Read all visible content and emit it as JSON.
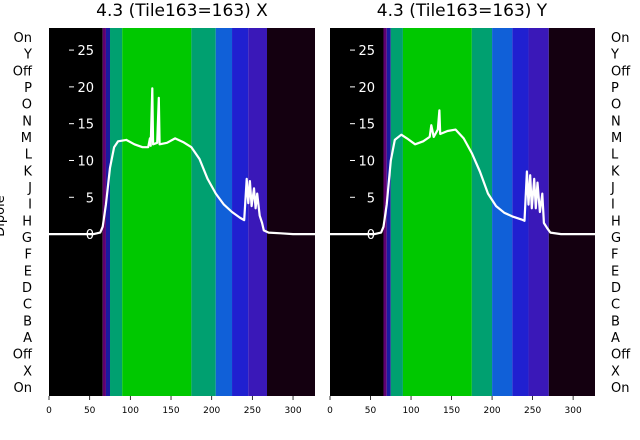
{
  "chart_data": [
    {
      "type": "heatmap",
      "title": "4.3 (Tile163=163) X",
      "ylabel": "Dipole",
      "y_tick_labels": [
        "On",
        "Y",
        "Off",
        "P",
        "O",
        "N",
        "M",
        "L",
        "K",
        "J",
        "I",
        "H",
        "G",
        "F",
        "E",
        "D",
        "C",
        "B",
        "A",
        "Off",
        "X",
        "On"
      ],
      "x_ticks": [
        0,
        50,
        100,
        150,
        200,
        250,
        300
      ],
      "x_range": [
        0,
        327
      ],
      "overlay_ticks": [
        0,
        5,
        10,
        15,
        20,
        25
      ],
      "overlay_range": [
        -22,
        28
      ],
      "color_bands": [
        {
          "from": 0,
          "to": 66,
          "color": "#000000"
        },
        {
          "from": 66,
          "to": 70,
          "color": "#600070"
        },
        {
          "from": 70,
          "to": 75,
          "color": "#1a1aa0"
        },
        {
          "from": 75,
          "to": 90,
          "color": "#00a070"
        },
        {
          "from": 90,
          "to": 175,
          "color": "#00c800"
        },
        {
          "from": 175,
          "to": 205,
          "color": "#00a070"
        },
        {
          "from": 205,
          "to": 225,
          "color": "#1060d8"
        },
        {
          "from": 225,
          "to": 245,
          "color": "#2020d0"
        },
        {
          "from": 245,
          "to": 268,
          "color": "#3a18b8"
        },
        {
          "from": 268,
          "to": 327,
          "color": "#140010"
        }
      ],
      "overlay_curve": [
        [
          0,
          0
        ],
        [
          55,
          0
        ],
        [
          63,
          0.2
        ],
        [
          66,
          1
        ],
        [
          70,
          4
        ],
        [
          75,
          9
        ],
        [
          80,
          11.8
        ],
        [
          85,
          12.6
        ],
        [
          95,
          12.8
        ],
        [
          105,
          12.2
        ],
        [
          115,
          11.8
        ],
        [
          122,
          11.8
        ],
        [
          124,
          13
        ],
        [
          125,
          12
        ],
        [
          127,
          19.8
        ],
        [
          128,
          12.2
        ],
        [
          133,
          12.4
        ],
        [
          135,
          18.5
        ],
        [
          136,
          12.2
        ],
        [
          145,
          12.4
        ],
        [
          155,
          13
        ],
        [
          165,
          12.5
        ],
        [
          175,
          11.8
        ],
        [
          185,
          10.2
        ],
        [
          195,
          7.5
        ],
        [
          205,
          5.5
        ],
        [
          215,
          4
        ],
        [
          225,
          3
        ],
        [
          235,
          2.2
        ],
        [
          240,
          1.9
        ],
        [
          243,
          7.5
        ],
        [
          245,
          4.2
        ],
        [
          247,
          7.2
        ],
        [
          249,
          3.8
        ],
        [
          252,
          6.2
        ],
        [
          254,
          3.5
        ],
        [
          256,
          5.5
        ],
        [
          259,
          2.5
        ],
        [
          262,
          1.5
        ],
        [
          264,
          0.5
        ],
        [
          270,
          0.2
        ],
        [
          285,
          0.1
        ],
        [
          300,
          0
        ],
        [
          327,
          0
        ]
      ]
    },
    {
      "type": "heatmap",
      "title": "4.3 (Tile163=163) Y",
      "ylabel": "",
      "y_tick_labels": [
        "On",
        "Y",
        "Off",
        "P",
        "O",
        "N",
        "M",
        "L",
        "K",
        "J",
        "I",
        "H",
        "G",
        "F",
        "E",
        "D",
        "C",
        "B",
        "A",
        "Off",
        "X",
        "On"
      ],
      "x_ticks": [
        0,
        50,
        100,
        150,
        200,
        250,
        300
      ],
      "x_range": [
        0,
        327
      ],
      "overlay_ticks": [
        0,
        5,
        10,
        15,
        20,
        25
      ],
      "overlay_range": [
        -22,
        28
      ],
      "color_bands": [
        {
          "from": 0,
          "to": 66,
          "color": "#000000"
        },
        {
          "from": 66,
          "to": 70,
          "color": "#600070"
        },
        {
          "from": 70,
          "to": 75,
          "color": "#1a1aa0"
        },
        {
          "from": 75,
          "to": 90,
          "color": "#00a070"
        },
        {
          "from": 90,
          "to": 175,
          "color": "#00c800"
        },
        {
          "from": 175,
          "to": 200,
          "color": "#00a070"
        },
        {
          "from": 200,
          "to": 225,
          "color": "#1060d8"
        },
        {
          "from": 225,
          "to": 245,
          "color": "#2020d0"
        },
        {
          "from": 245,
          "to": 270,
          "color": "#3a18b8"
        },
        {
          "from": 270,
          "to": 327,
          "color": "#140010"
        }
      ],
      "overlay_curve": [
        [
          0,
          0
        ],
        [
          55,
          0
        ],
        [
          63,
          0.2
        ],
        [
          66,
          1
        ],
        [
          70,
          4
        ],
        [
          75,
          10
        ],
        [
          80,
          12.8
        ],
        [
          88,
          13.5
        ],
        [
          95,
          13
        ],
        [
          105,
          12.2
        ],
        [
          115,
          12.6
        ],
        [
          123,
          13.2
        ],
        [
          125,
          14.8
        ],
        [
          128,
          13.2
        ],
        [
          133,
          14.2
        ],
        [
          135,
          16.8
        ],
        [
          136,
          13.6
        ],
        [
          145,
          14
        ],
        [
          155,
          14.2
        ],
        [
          165,
          13
        ],
        [
          175,
          11
        ],
        [
          185,
          8.5
        ],
        [
          195,
          5.5
        ],
        [
          205,
          3.8
        ],
        [
          215,
          2.9
        ],
        [
          225,
          2.4
        ],
        [
          236,
          2
        ],
        [
          240,
          1.8
        ],
        [
          243,
          8.5
        ],
        [
          245,
          4
        ],
        [
          247,
          8
        ],
        [
          249,
          3.5
        ],
        [
          252,
          7.5
        ],
        [
          254,
          3.5
        ],
        [
          256,
          7
        ],
        [
          259,
          3
        ],
        [
          262,
          5.5
        ],
        [
          264,
          1.5
        ],
        [
          268,
          0.8
        ],
        [
          272,
          0.2
        ],
        [
          285,
          0
        ],
        [
          327,
          0
        ]
      ]
    }
  ]
}
